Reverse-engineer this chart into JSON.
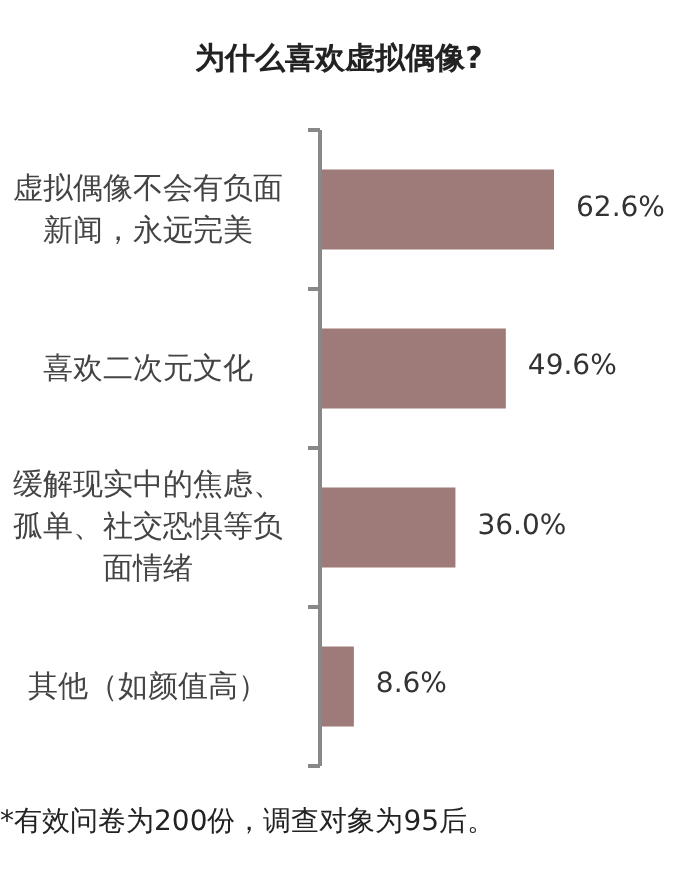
{
  "chart_data": {
    "type": "bar",
    "orientation": "horizontal",
    "title": "为什么喜欢虚拟偶像?",
    "categories": [
      "虚拟偶像不会有负面新闻，永远完美",
      "喜欢二次元文化",
      "缓解现实中的焦虑、孤单、社交恐惧等负面情绪",
      "其他（如颜值高）"
    ],
    "values": [
      62.6,
      49.6,
      36.0,
      8.6
    ],
    "value_labels": [
      "62.6%",
      "49.6%",
      "36.0%",
      "8.6%"
    ],
    "color": "#9e7a78",
    "annotations": [
      "*有效问卷为200份，调查对象为95后。"
    ]
  }
}
